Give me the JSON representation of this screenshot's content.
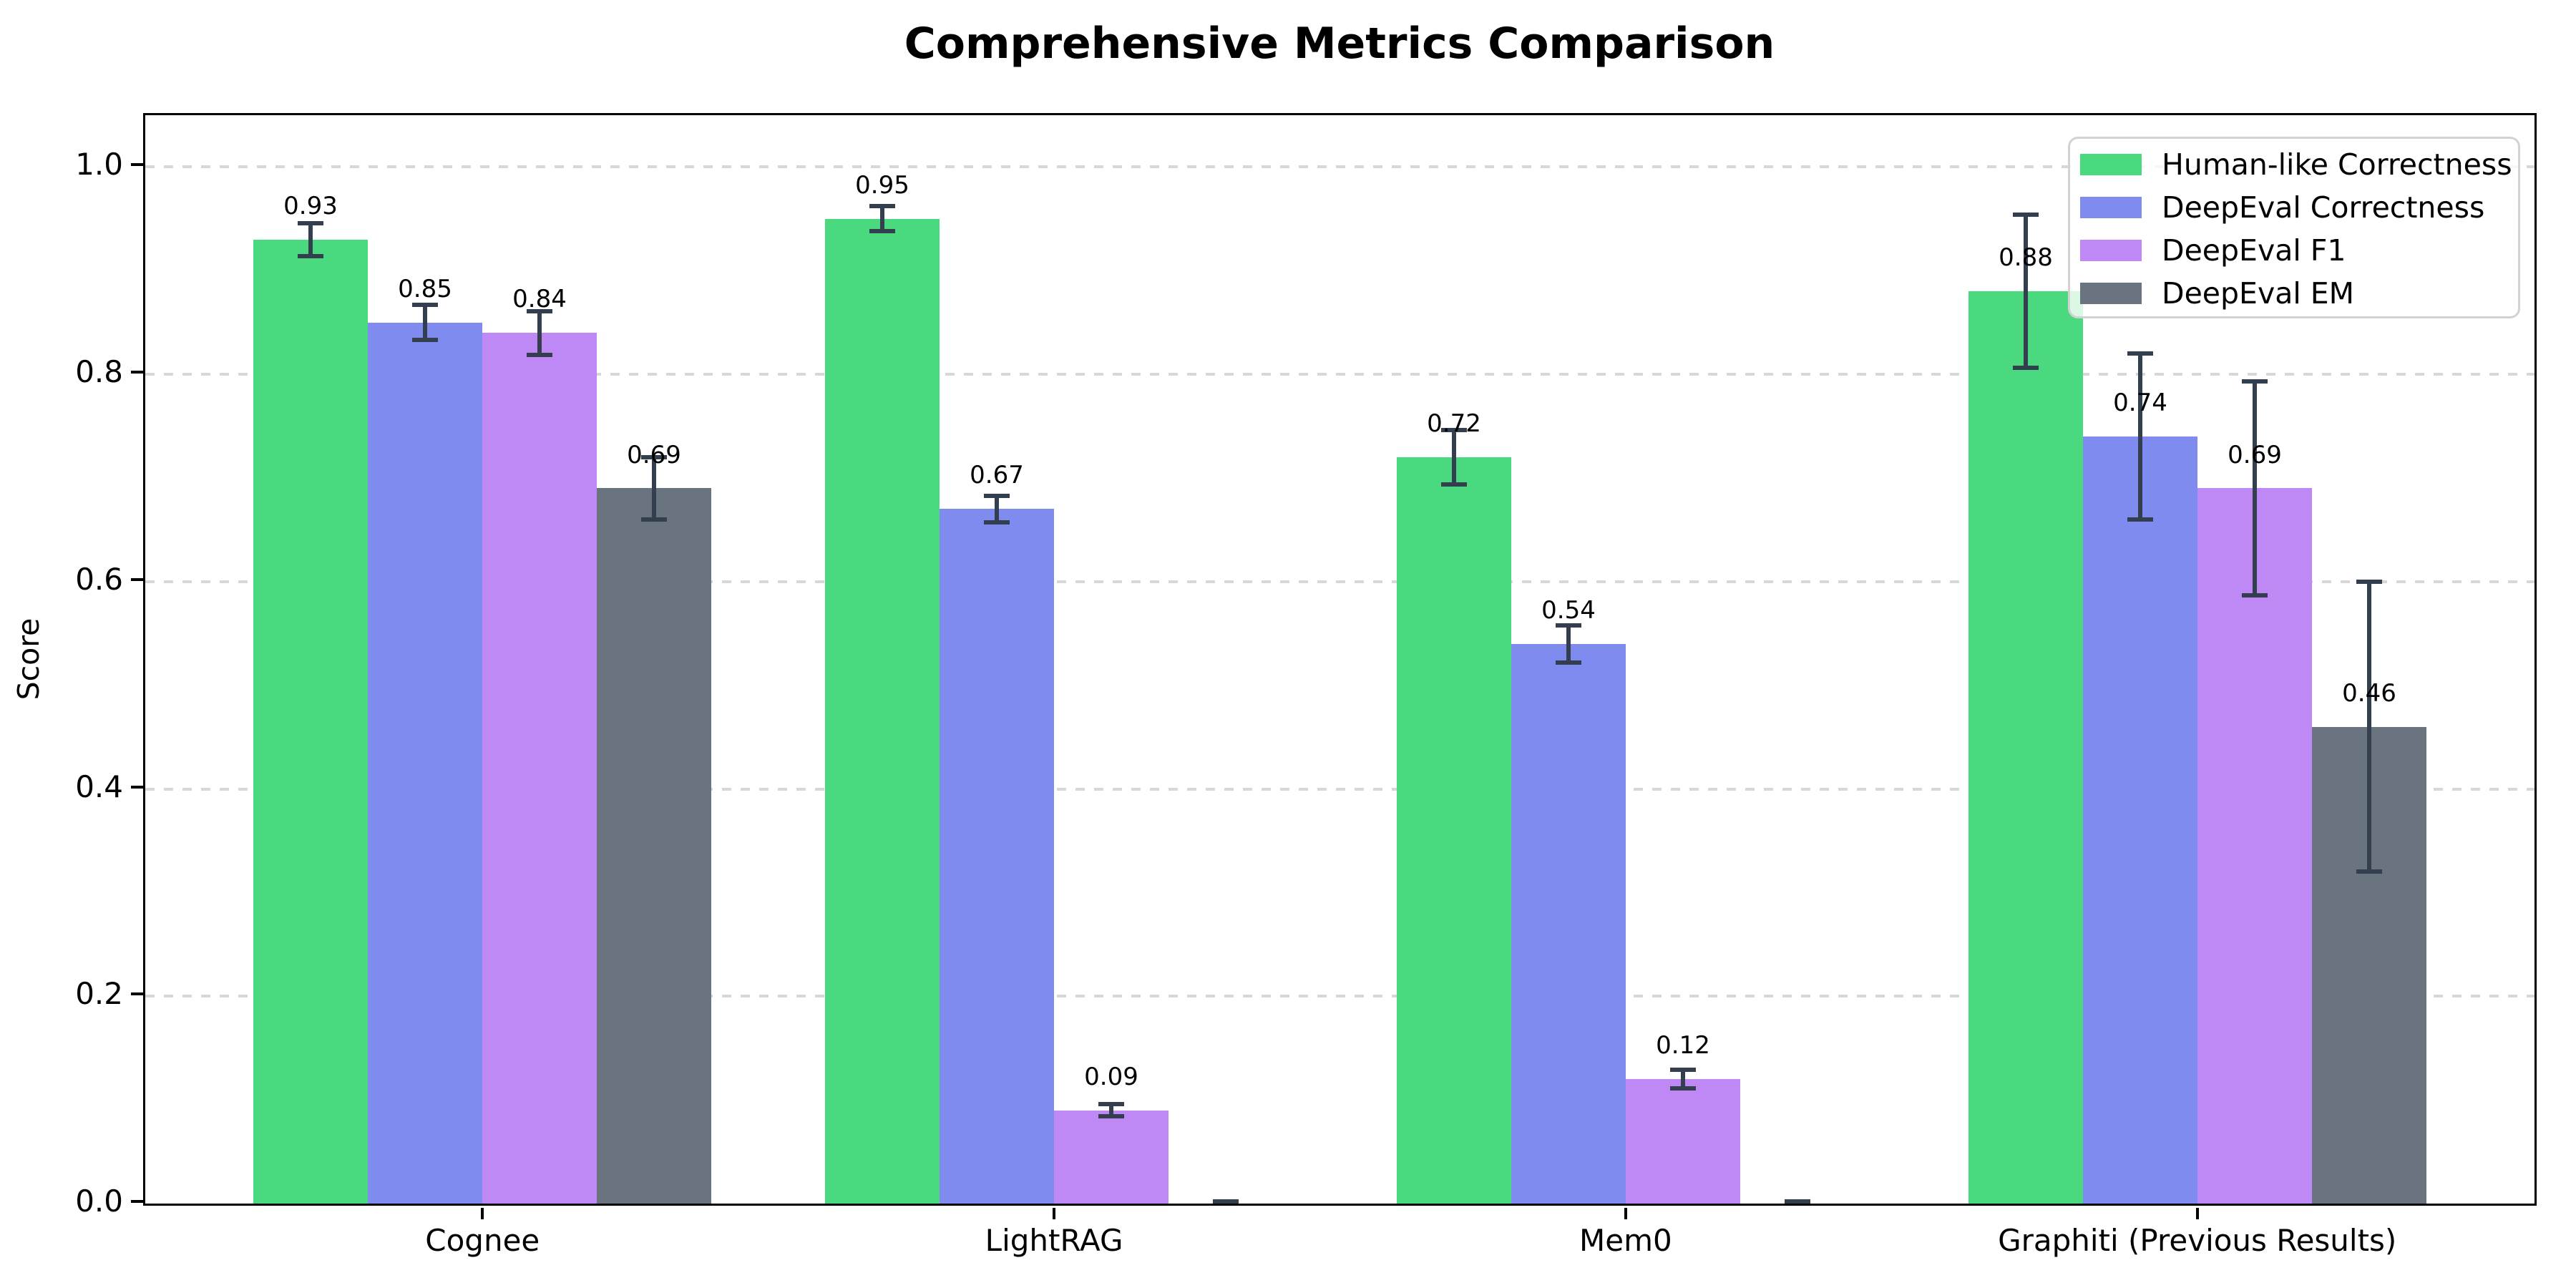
{
  "chart_data": {
    "type": "bar",
    "title": "Comprehensive Metrics Comparison",
    "ylabel": "Score",
    "xlabel": "",
    "ylim": [
      0,
      1.05
    ],
    "yticks": [
      "0.0",
      "0.2",
      "0.4",
      "0.6",
      "0.8",
      "1.0"
    ],
    "grid": "horizontal dashed",
    "legend_position": "upper right",
    "categories": [
      "Cognee",
      "LightRAG",
      "Mem0",
      "Graphiti (Previous Results)"
    ],
    "series": [
      {
        "name": "Human-like Correctness",
        "color": "#4ad97e",
        "values": [
          0.93,
          0.95,
          0.72,
          0.88
        ],
        "errors": [
          0.016,
          0.012,
          0.026,
          0.074
        ],
        "labels": [
          "0.93",
          "0.95",
          "0.72",
          "0.88"
        ]
      },
      {
        "name": "DeepEval Correctness",
        "color": "#7f8bef",
        "values": [
          0.85,
          0.67,
          0.54,
          0.74
        ],
        "errors": [
          0.017,
          0.013,
          0.018,
          0.08
        ],
        "labels": [
          "0.85",
          "0.67",
          "0.54",
          "0.74"
        ]
      },
      {
        "name": "DeepEval F1",
        "color": "#be89f5",
        "values": [
          0.84,
          0.09,
          0.12,
          0.69
        ],
        "errors": [
          0.021,
          0.006,
          0.009,
          0.103
        ],
        "labels": [
          "0.84",
          "0.09",
          "0.12",
          "0.69"
        ]
      },
      {
        "name": "DeepEval EM",
        "color": "#6a7380",
        "values": [
          0.69,
          0.0,
          0.0,
          0.46
        ],
        "errors": [
          0.03,
          0.002,
          0.002,
          0.14
        ],
        "labels": [
          "0.69",
          "",
          "",
          "0.46"
        ]
      }
    ],
    "error_bar_color": "#333e4f",
    "axis_color": "#000000",
    "grid_color": "#d7d7d7",
    "background_color": "#ffffff"
  }
}
